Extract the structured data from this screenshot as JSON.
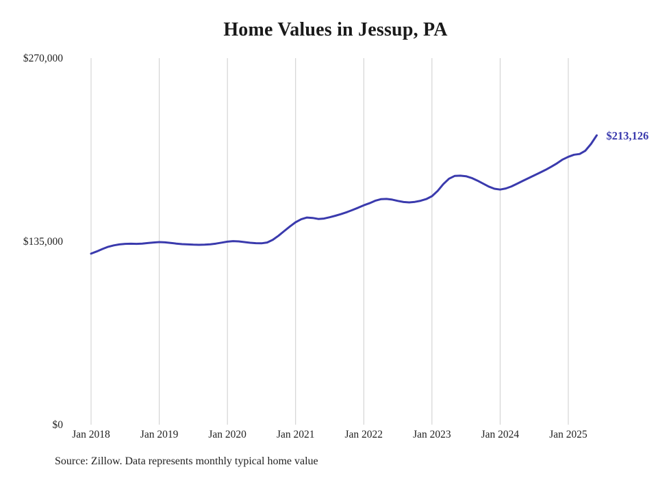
{
  "page": {
    "title": "Home Values in Jessup, PA",
    "source_note": "Source: Zillow. Data represents monthly typical home value"
  },
  "chart_data": {
    "type": "line",
    "title": "Home Values in Jessup, PA",
    "series_name": "Monthly typical home value",
    "x_start": "Jan 2018",
    "x_end": "Jun 2025",
    "x_tick_labels": [
      "Jan 2018",
      "Jan 2019",
      "Jan 2020",
      "Jan 2021",
      "Jan 2022",
      "Jan 2023",
      "Jan 2024",
      "Jan 2025"
    ],
    "x_tick_indices": [
      0,
      12,
      24,
      36,
      48,
      60,
      72,
      84
    ],
    "values": [
      126000,
      127600,
      129400,
      131000,
      132100,
      132800,
      133200,
      133300,
      133200,
      133400,
      133800,
      134200,
      134500,
      134300,
      133900,
      133400,
      133000,
      132800,
      132600,
      132500,
      132600,
      132900,
      133400,
      134100,
      134800,
      135200,
      135000,
      134500,
      134000,
      133700,
      133600,
      134200,
      136200,
      139200,
      142600,
      146000,
      149100,
      151300,
      152600,
      152300,
      151500,
      151800,
      152800,
      153900,
      155100,
      156500,
      158100,
      159800,
      161600,
      163100,
      164900,
      166100,
      166300,
      165800,
      164800,
      164000,
      163700,
      164100,
      164900,
      166200,
      168300,
      172200,
      177200,
      181200,
      183200,
      183400,
      183000,
      181700,
      179800,
      177600,
      175400,
      173800,
      173200,
      174000,
      175500,
      177500,
      179600,
      181600,
      183600,
      185600,
      187700,
      190000,
      192500,
      195300,
      197300,
      198800,
      199400,
      201800,
      206800,
      213126
    ],
    "last_value": 213126,
    "end_label": "$213,126",
    "ylim": [
      0,
      270000
    ],
    "y_ticks": [
      {
        "value": 0,
        "label": "$0"
      },
      {
        "value": 135000,
        "label": "$135,000"
      },
      {
        "value": 270000,
        "label": "$270,000"
      }
    ],
    "grid": "vertical-only",
    "legend_position": "none",
    "line_color": "#3a3aad",
    "grid_color": "#cccccc",
    "tick_label_color": "#222222"
  }
}
